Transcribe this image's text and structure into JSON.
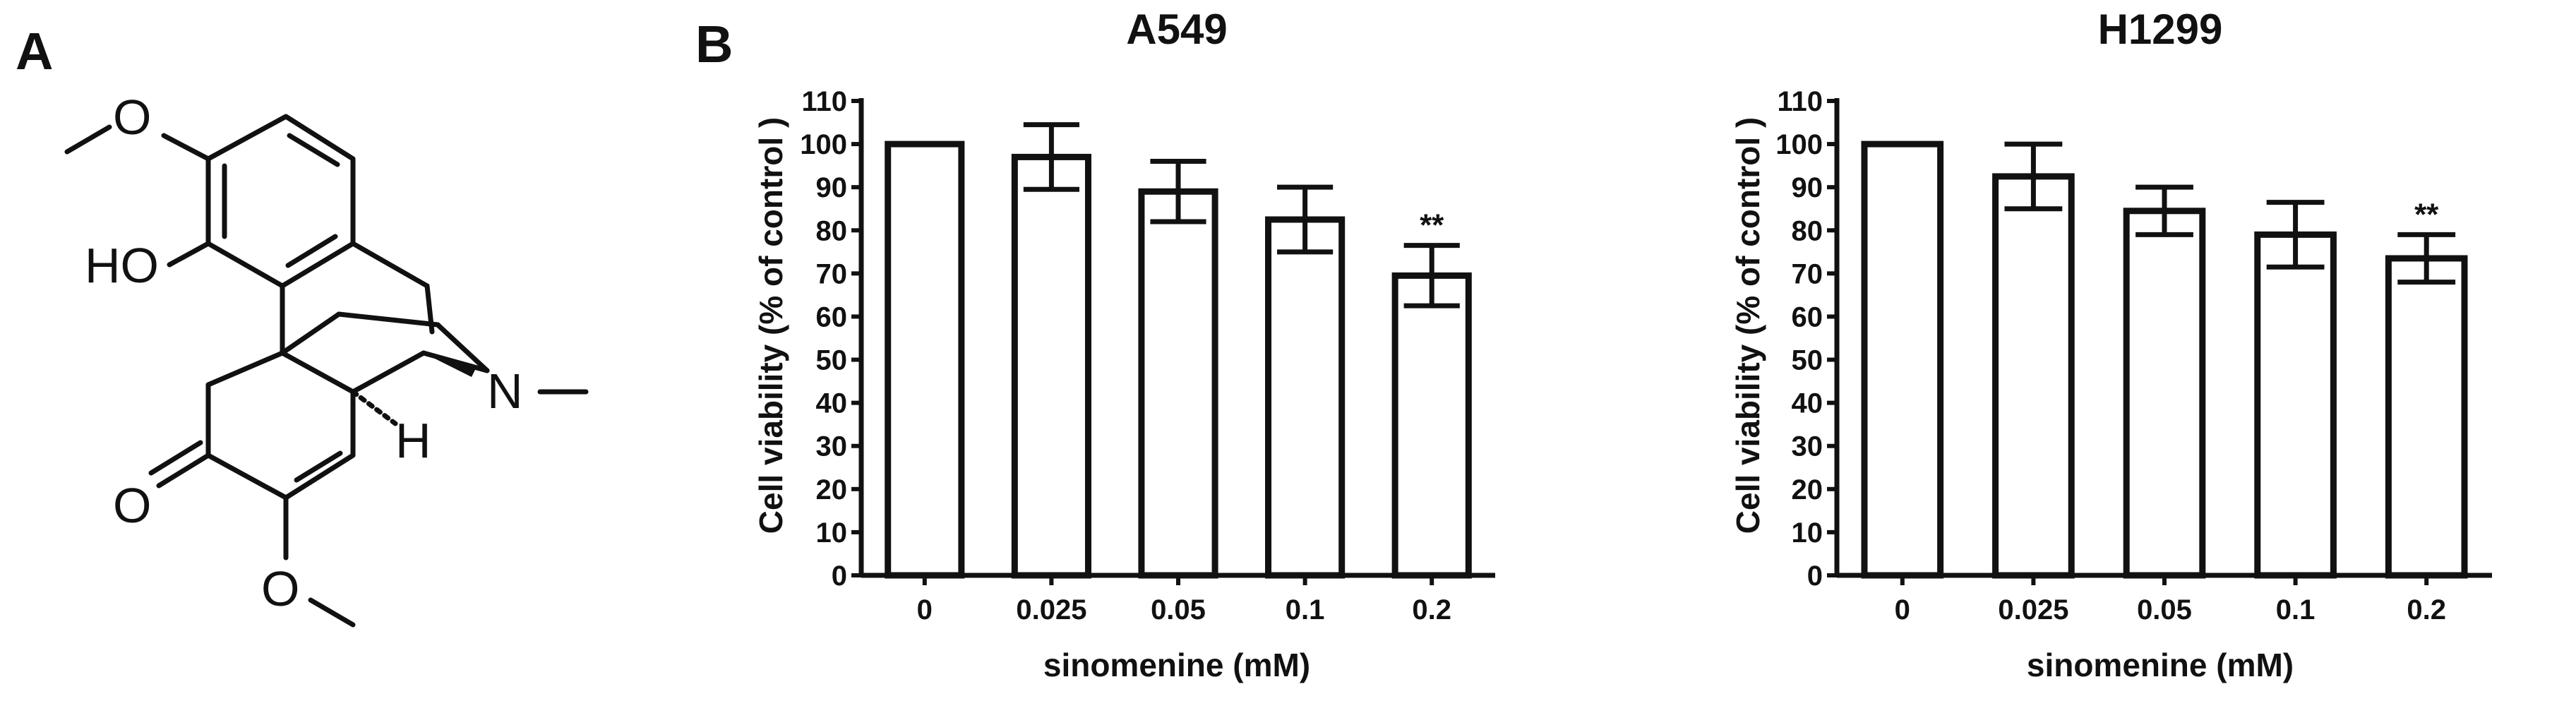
{
  "panels": {
    "a": {
      "letter": "A"
    },
    "b": {
      "letter": "B"
    }
  },
  "molecule": {
    "atoms": {
      "o_methoxy_top": "O",
      "ho": "HO",
      "n": "N",
      "h": "H",
      "o_ketone": "O",
      "o_methoxy_bottom": "O"
    }
  },
  "chart_data": [
    {
      "type": "bar",
      "title": "A549",
      "xlabel": "sinomenine (mM)",
      "ylabel": "Cell viability (% of control )",
      "categories": [
        "0",
        "0.025",
        "0.05",
        "0.1",
        "0.2"
      ],
      "values": [
        100,
        97,
        89,
        82.5,
        69.5
      ],
      "errors": [
        0,
        7.5,
        7,
        7.5,
        7
      ],
      "annotations": [
        "",
        "",
        "",
        "",
        "**"
      ],
      "ylim": [
        0,
        110
      ],
      "yticks": [
        "0",
        "10",
        "20",
        "30",
        "40",
        "50",
        "60",
        "70",
        "80",
        "90",
        "100",
        "110"
      ],
      "grid": false
    },
    {
      "type": "bar",
      "title": "H1299",
      "xlabel": "sinomenine (mM)",
      "ylabel": "Cell viability (% of control )",
      "categories": [
        "0",
        "0.025",
        "0.05",
        "0.1",
        "0.2"
      ],
      "values": [
        100,
        92.5,
        84.5,
        79,
        73.5
      ],
      "errors": [
        0,
        7.5,
        5.5,
        7.5,
        5.5
      ],
      "annotations": [
        "",
        "",
        "",
        "",
        "**"
      ],
      "ylim": [
        0,
        110
      ],
      "yticks": [
        "0",
        "10",
        "20",
        "30",
        "40",
        "50",
        "60",
        "70",
        "80",
        "90",
        "100",
        "110"
      ],
      "grid": false
    }
  ]
}
